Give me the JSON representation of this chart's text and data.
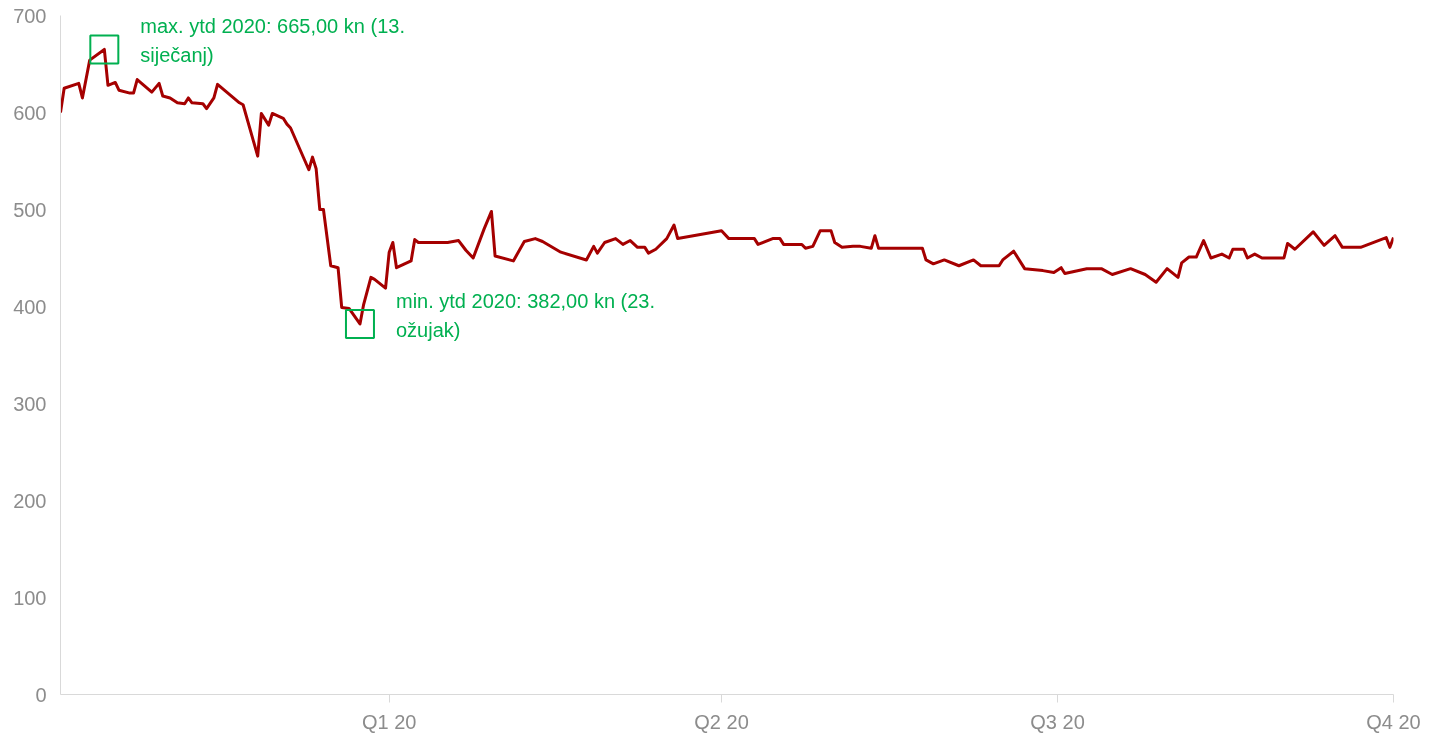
{
  "chart_data": {
    "type": "line",
    "xlim": [
      "2020-01-01",
      "2020-12-31"
    ],
    "ylim": [
      0,
      700
    ],
    "yticks": [
      0,
      100,
      200,
      300,
      400,
      500,
      600,
      700
    ],
    "xticks": [
      {
        "value": "2020-03-31",
        "label": "Q1 20"
      },
      {
        "value": "2020-06-30",
        "label": "Q2 20"
      },
      {
        "value": "2020-09-30",
        "label": "Q3 20"
      },
      {
        "value": "2020-12-31",
        "label": "Q4 20"
      }
    ],
    "grid": false,
    "marker": "none",
    "line_style": "solid",
    "annotations": [
      {
        "text": "max. ytd 2020: 665,00 kn (13. siječanj)",
        "x": "2020-01-13",
        "y": 665
      },
      {
        "text": "min. ytd 2020: 382,00 kn (23. ožujak)",
        "x": "2020-03-23",
        "y": 382
      }
    ],
    "series": [
      {
        "color": "#a50000",
        "x": [
          "2020-01-01",
          "2020-01-02",
          "2020-01-06",
          "2020-01-07",
          "2020-01-09",
          "2020-01-13",
          "2020-01-14",
          "2020-01-16",
          "2020-01-17",
          "2020-01-20",
          "2020-01-21",
          "2020-01-22",
          "2020-01-26",
          "2020-01-28",
          "2020-01-29",
          "2020-01-31",
          "2020-02-02",
          "2020-02-04",
          "2020-02-05",
          "2020-02-06",
          "2020-02-09",
          "2020-02-10",
          "2020-02-12",
          "2020-02-13",
          "2020-02-19",
          "2020-02-20",
          "2020-02-24",
          "2020-02-25",
          "2020-02-27",
          "2020-02-28",
          "2020-03-02",
          "2020-03-03",
          "2020-03-04",
          "2020-03-09",
          "2020-03-10",
          "2020-03-11",
          "2020-03-12",
          "2020-03-13",
          "2020-03-15",
          "2020-03-17",
          "2020-03-18",
          "2020-03-20",
          "2020-03-23",
          "2020-03-24",
          "2020-03-26",
          "2020-03-27",
          "2020-03-30",
          "2020-03-31",
          "2020-04-01",
          "2020-04-02",
          "2020-04-06",
          "2020-04-07",
          "2020-04-08",
          "2020-04-12",
          "2020-04-16",
          "2020-04-19",
          "2020-04-21",
          "2020-04-23",
          "2020-04-26",
          "2020-04-28",
          "2020-04-29",
          "2020-05-04",
          "2020-05-07",
          "2020-05-10",
          "2020-05-12",
          "2020-05-17",
          "2020-05-24",
          "2020-05-26",
          "2020-05-27",
          "2020-05-29",
          "2020-06-01",
          "2020-06-03",
          "2020-06-05",
          "2020-06-07",
          "2020-06-09",
          "2020-06-10",
          "2020-06-12",
          "2020-06-15",
          "2020-06-17",
          "2020-06-18",
          "2020-06-30",
          "2020-07-02",
          "2020-07-09",
          "2020-07-10",
          "2020-07-14",
          "2020-07-16",
          "2020-07-17",
          "2020-07-22",
          "2020-07-23",
          "2020-07-25",
          "2020-07-27",
          "2020-07-30",
          "2020-07-31",
          "2020-08-02",
          "2020-08-05",
          "2020-08-07",
          "2020-08-10",
          "2020-08-11",
          "2020-08-12",
          "2020-08-24",
          "2020-08-25",
          "2020-08-27",
          "2020-08-30",
          "2020-09-03",
          "2020-09-07",
          "2020-09-09",
          "2020-09-14",
          "2020-09-15",
          "2020-09-18",
          "2020-09-21",
          "2020-09-26",
          "2020-09-29",
          "2020-10-01",
          "2020-10-02",
          "2020-10-08",
          "2020-10-12",
          "2020-10-15",
          "2020-10-20",
          "2020-10-24",
          "2020-10-27",
          "2020-10-30",
          "2020-11-02",
          "2020-11-03",
          "2020-11-05",
          "2020-11-07",
          "2020-11-09",
          "2020-11-11",
          "2020-11-14",
          "2020-11-16",
          "2020-11-17",
          "2020-11-20",
          "2020-11-21",
          "2020-11-23",
          "2020-11-25",
          "2020-12-01",
          "2020-12-02",
          "2020-12-04",
          "2020-12-09",
          "2020-12-12",
          "2020-12-15",
          "2020-12-17",
          "2020-12-22",
          "2020-12-29",
          "2020-12-30",
          "2020-12-31"
        ],
        "values": [
          600,
          625,
          630,
          615,
          654,
          665,
          628,
          631,
          623,
          620,
          620,
          634,
          621,
          630,
          617,
          615,
          610,
          609,
          615,
          610,
          609,
          604,
          615,
          629,
          610,
          608,
          555,
          599,
          587,
          599,
          594,
          588,
          584,
          541,
          554,
          542,
          500,
          500,
          442,
          440,
          399,
          398,
          382,
          402,
          430,
          428,
          419,
          456,
          466,
          440,
          447,
          469,
          466,
          466,
          466,
          468,
          458,
          450,
          480,
          498,
          452,
          447,
          467,
          470,
          467,
          456,
          448,
          462,
          455,
          466,
          470,
          464,
          468,
          461,
          461,
          455,
          459,
          470,
          484,
          470,
          478,
          470,
          470,
          464,
          470,
          470,
          464,
          464,
          460,
          462,
          478,
          478,
          466,
          461,
          462,
          462,
          460,
          473,
          460,
          460,
          448,
          444,
          448,
          442,
          448,
          442,
          442,
          448,
          457,
          439,
          437,
          435,
          440,
          434,
          439,
          439,
          433,
          439,
          433,
          425,
          439,
          430,
          445,
          451,
          451,
          468,
          450,
          454,
          450,
          459,
          459,
          450,
          454,
          450,
          450,
          465,
          459,
          477,
          463,
          473,
          461,
          461,
          471,
          461,
          471
        ]
      }
    ]
  }
}
